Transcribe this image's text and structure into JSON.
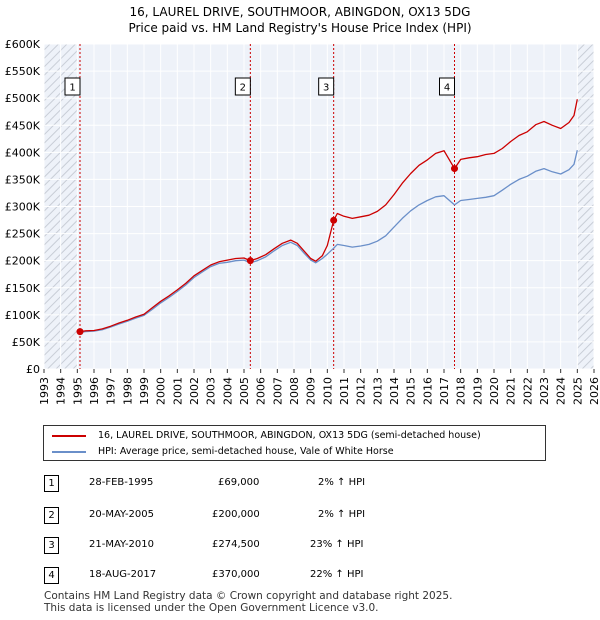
{
  "chart_data": {
    "type": "line",
    "title": "16, LAUREL DRIVE, SOUTHMOOR, ABINGDON, OX13 5DG",
    "subtitle": "Price paid vs. HM Land Registry's House Price Index (HPI)",
    "xlim": [
      1993,
      2026
    ],
    "ylim": [
      0,
      600000
    ],
    "x_ticks": [
      "1993",
      "1994",
      "1995",
      "1996",
      "1997",
      "1998",
      "1999",
      "2000",
      "2001",
      "2002",
      "2003",
      "2004",
      "2005",
      "2006",
      "2007",
      "2008",
      "2009",
      "2010",
      "2011",
      "2012",
      "2013",
      "2014",
      "2015",
      "2016",
      "2017",
      "2018",
      "2019",
      "2020",
      "2021",
      "2022",
      "2023",
      "2024",
      "2025",
      "2026"
    ],
    "y_ticks": [
      {
        "value": 0,
        "label": "£0"
      },
      {
        "value": 50000,
        "label": "£50K"
      },
      {
        "value": 100000,
        "label": "£100K"
      },
      {
        "value": 150000,
        "label": "£150K"
      },
      {
        "value": 200000,
        "label": "£200K"
      },
      {
        "value": 250000,
        "label": "£250K"
      },
      {
        "value": 300000,
        "label": "£300K"
      },
      {
        "value": 350000,
        "label": "£350K"
      },
      {
        "value": 400000,
        "label": "£400K"
      },
      {
        "value": 450000,
        "label": "£450K"
      },
      {
        "value": 500000,
        "label": "£500K"
      },
      {
        "value": 550000,
        "label": "£550K"
      },
      {
        "value": 600000,
        "label": "£600K"
      }
    ],
    "grid": true,
    "hatch_before": 1995.0,
    "hatch_after": 2025.0,
    "series": [
      {
        "name": "16, LAUREL DRIVE, SOUTHMOOR, ABINGDON, OX13 5DG (semi-detached house)",
        "color": "#cc0000",
        "x": [
          1995.16,
          1995.5,
          1996,
          1996.5,
          1997,
          1997.5,
          1998,
          1998.5,
          1999,
          1999.5,
          2000,
          2000.5,
          2001,
          2001.5,
          2002,
          2002.5,
          2003,
          2003.5,
          2004,
          2004.5,
          2005,
          2005.38,
          2005.8,
          2006.3,
          2006.8,
          2007.3,
          2007.8,
          2008.2,
          2008.6,
          2009,
          2009.3,
          2009.7,
          2010.0,
          2010.38,
          2010.6,
          2011,
          2011.5,
          2012,
          2012.5,
          2013,
          2013.5,
          2014,
          2014.5,
          2015,
          2015.5,
          2016,
          2016.5,
          2017,
          2017.63,
          2018,
          2018.5,
          2019,
          2019.5,
          2020,
          2020.5,
          2021,
          2021.5,
          2022,
          2022.5,
          2023,
          2023.5,
          2024,
          2024.5,
          2024.8,
          2025.0
        ],
        "values": [
          69000,
          70500,
          71000,
          74000,
          79000,
          85000,
          90000,
          96000,
          101000,
          113000,
          125000,
          135000,
          146000,
          158000,
          172000,
          182000,
          192000,
          198000,
          201000,
          204000,
          205000,
          200000,
          204000,
          211000,
          222000,
          232000,
          238000,
          232000,
          218000,
          204000,
          199000,
          209000,
          228000,
          274500,
          287000,
          282000,
          278000,
          281000,
          284000,
          291000,
          303000,
          322000,
          343000,
          361000,
          376000,
          386000,
          398000,
          403000,
          370000,
          387000,
          390000,
          392000,
          396000,
          398000,
          407000,
          420000,
          431000,
          438000,
          451000,
          457000,
          450000,
          444000,
          455000,
          468000,
          498000
        ]
      },
      {
        "name": "HPI: Average price, semi-detached house, Vale of White Horse",
        "color": "#6a8fc9",
        "x": [
          1995.16,
          1995.5,
          1996,
          1996.5,
          1997,
          1997.5,
          1998,
          1998.5,
          1999,
          1999.5,
          2000,
          2000.5,
          2001,
          2001.5,
          2002,
          2002.5,
          2003,
          2003.5,
          2004,
          2004.5,
          2005,
          2005.38,
          2005.8,
          2006.3,
          2006.8,
          2007.3,
          2007.8,
          2008.2,
          2008.6,
          2009,
          2009.3,
          2009.7,
          2010.0,
          2010.38,
          2010.6,
          2011,
          2011.5,
          2012,
          2012.5,
          2013,
          2013.5,
          2014,
          2014.5,
          2015,
          2015.5,
          2016,
          2016.5,
          2017,
          2017.63,
          2018,
          2018.5,
          2019,
          2019.5,
          2020,
          2020.5,
          2021,
          2021.5,
          2022,
          2022.5,
          2023,
          2023.5,
          2024,
          2024.5,
          2024.8,
          2025.0
        ],
        "values": [
          67600,
          69000,
          70000,
          72500,
          77500,
          83000,
          88000,
          94000,
          99000,
          110000,
          122000,
          132000,
          143000,
          155000,
          169000,
          179000,
          189000,
          195000,
          197000,
          200000,
          201000,
          196000,
          200000,
          207000,
          218000,
          228000,
          234000,
          228000,
          214000,
          201000,
          196000,
          204000,
          212000,
          223000,
          230000,
          228000,
          225000,
          227000,
          230000,
          236000,
          246000,
          262000,
          278000,
          292000,
          303000,
          311000,
          318000,
          320000,
          303000,
          311000,
          313000,
          315000,
          317000,
          320000,
          330000,
          341000,
          350000,
          356000,
          365000,
          370000,
          364000,
          360000,
          368000,
          378000,
          404000
        ]
      }
    ],
    "transactions": [
      {
        "num": "1",
        "x": 1995.16,
        "price": 69000
      },
      {
        "num": "2",
        "x": 2005.38,
        "price": 200000
      },
      {
        "num": "3",
        "x": 2010.38,
        "price": 274500
      },
      {
        "num": "4",
        "x": 2017.63,
        "price": 370000
      }
    ]
  },
  "legend": {
    "property_label": "16, LAUREL DRIVE, SOUTHMOOR, ABINGDON, OX13 5DG (semi-detached house)",
    "hpi_label": "HPI: Average price, semi-detached house, Vale of White Horse"
  },
  "table": {
    "rows": [
      {
        "num": "1",
        "date": "28-FEB-1995",
        "price": "£69,000",
        "hpi": "2% ↑ HPI"
      },
      {
        "num": "2",
        "date": "20-MAY-2005",
        "price": "£200,000",
        "hpi": "2% ↑ HPI"
      },
      {
        "num": "3",
        "date": "21-MAY-2010",
        "price": "£274,500",
        "hpi": "23% ↑ HPI"
      },
      {
        "num": "4",
        "date": "18-AUG-2017",
        "price": "£370,000",
        "hpi": "22% ↑ HPI"
      }
    ]
  },
  "footer": {
    "line1": "Contains HM Land Registry data © Crown copyright and database right 2025.",
    "line2": "This data is licensed under the Open Government Licence v3.0."
  },
  "colors": {
    "property": "#cc0000",
    "hpi": "#6a8fc9",
    "plot_bg": "#eef2f9",
    "grid": "#ffffff",
    "hatch": "#c8cdd6"
  }
}
